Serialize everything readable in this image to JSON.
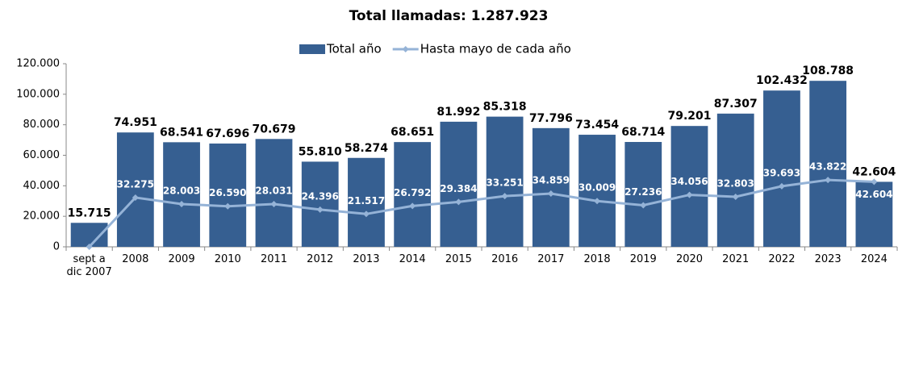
{
  "chart_data": {
    "type": "bar_line",
    "title": "Total llamadas: 1.287.923",
    "categories": [
      "sept a dic 2007",
      "2008",
      "2009",
      "2010",
      "2011",
      "2012",
      "2013",
      "2014",
      "2015",
      "2016",
      "2017",
      "2018",
      "2019",
      "2020",
      "2021",
      "2022",
      "2023",
      "2024"
    ],
    "series": [
      {
        "name": "Total año",
        "type": "bar",
        "color": "#365f91",
        "values": [
          15715,
          74951,
          68541,
          67696,
          70679,
          55810,
          58274,
          68651,
          81992,
          85318,
          77796,
          73454,
          68714,
          79201,
          87307,
          102432,
          108788,
          42604
        ],
        "value_labels": [
          "15.715",
          "74.951",
          "68.541",
          "67.696",
          "70.679",
          "55.810",
          "58.274",
          "68.651",
          "81.992",
          "85.318",
          "77.796",
          "73.454",
          "68.714",
          "79.201",
          "87.307",
          "102.432",
          "108.788",
          "42.604"
        ]
      },
      {
        "name": "Hasta mayo de cada año",
        "type": "line",
        "color": "#95b3d7",
        "values": [
          0,
          32275,
          28003,
          26590,
          28031,
          24396,
          21517,
          26792,
          29384,
          33251,
          34859,
          30009,
          27236,
          34056,
          32803,
          39693,
          43822,
          42604
        ],
        "value_labels": [
          "0",
          "32.275",
          "28.003",
          "26.590",
          "28.031",
          "24.396",
          "21.517",
          "26.792",
          "29.384",
          "33.251",
          "34.859",
          "30.009",
          "27.236",
          "34.056",
          "32.803",
          "39.693",
          "43.822",
          "42.604"
        ]
      }
    ],
    "ylim": [
      0,
      120000
    ],
    "yticks": [
      0,
      {
        "value": 20000,
        "label": "20.000"
      },
      {
        "value": 40000,
        "label": "40.000"
      },
      {
        "value": 60000,
        "label": "60.000"
      },
      {
        "value": 80000,
        "label": "80.000"
      },
      {
        "value": 100000,
        "label": "100.000"
      },
      {
        "value": 120000,
        "label": "120.000"
      }
    ],
    "grid": false,
    "legend": "top"
  }
}
